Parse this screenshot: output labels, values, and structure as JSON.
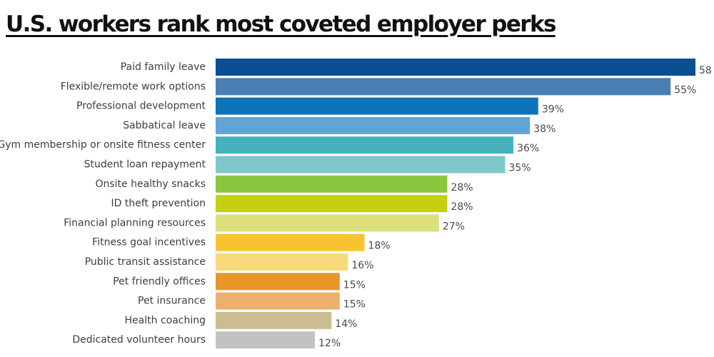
{
  "chart_data": {
    "type": "bar",
    "orientation": "horizontal",
    "title": "U.S. workers rank most coveted employer perks",
    "xlabel": "",
    "ylabel": "",
    "xlim": [
      0,
      58
    ],
    "grid": false,
    "legend": "none",
    "categories": [
      "Paid family leave",
      "Flexible/remote work options",
      "Professional development",
      "Sabbatical leave",
      "Gym membership or onsite fitness center",
      "Student loan repayment",
      "Onsite healthy snacks",
      "ID theft prevention",
      "Financial planning resources",
      "Fitness goal incentives",
      "Public transit assistance",
      "Pet friendly offices",
      "Pet insurance",
      "Health coaching",
      "Dedicated volunteer hours"
    ],
    "values": [
      58,
      55,
      39,
      38,
      36,
      35,
      28,
      28,
      27,
      18,
      16,
      15,
      15,
      14,
      12
    ],
    "value_labels": [
      "58",
      "55%",
      "39%",
      "38%",
      "36%",
      "35%",
      "28%",
      "28%",
      "27%",
      "18%",
      "16%",
      "15%",
      "15%",
      "14%",
      "12%"
    ],
    "colors": [
      "#0b4f91",
      "#4a7fb5",
      "#0e72bb",
      "#62a5d4",
      "#46b3bc",
      "#7ec8cc",
      "#8cc63f",
      "#c4cf10",
      "#dce07c",
      "#f7c332",
      "#f8d97c",
      "#e8952a",
      "#ebb06e",
      "#cbbd92",
      "#c2c2c2"
    ]
  }
}
